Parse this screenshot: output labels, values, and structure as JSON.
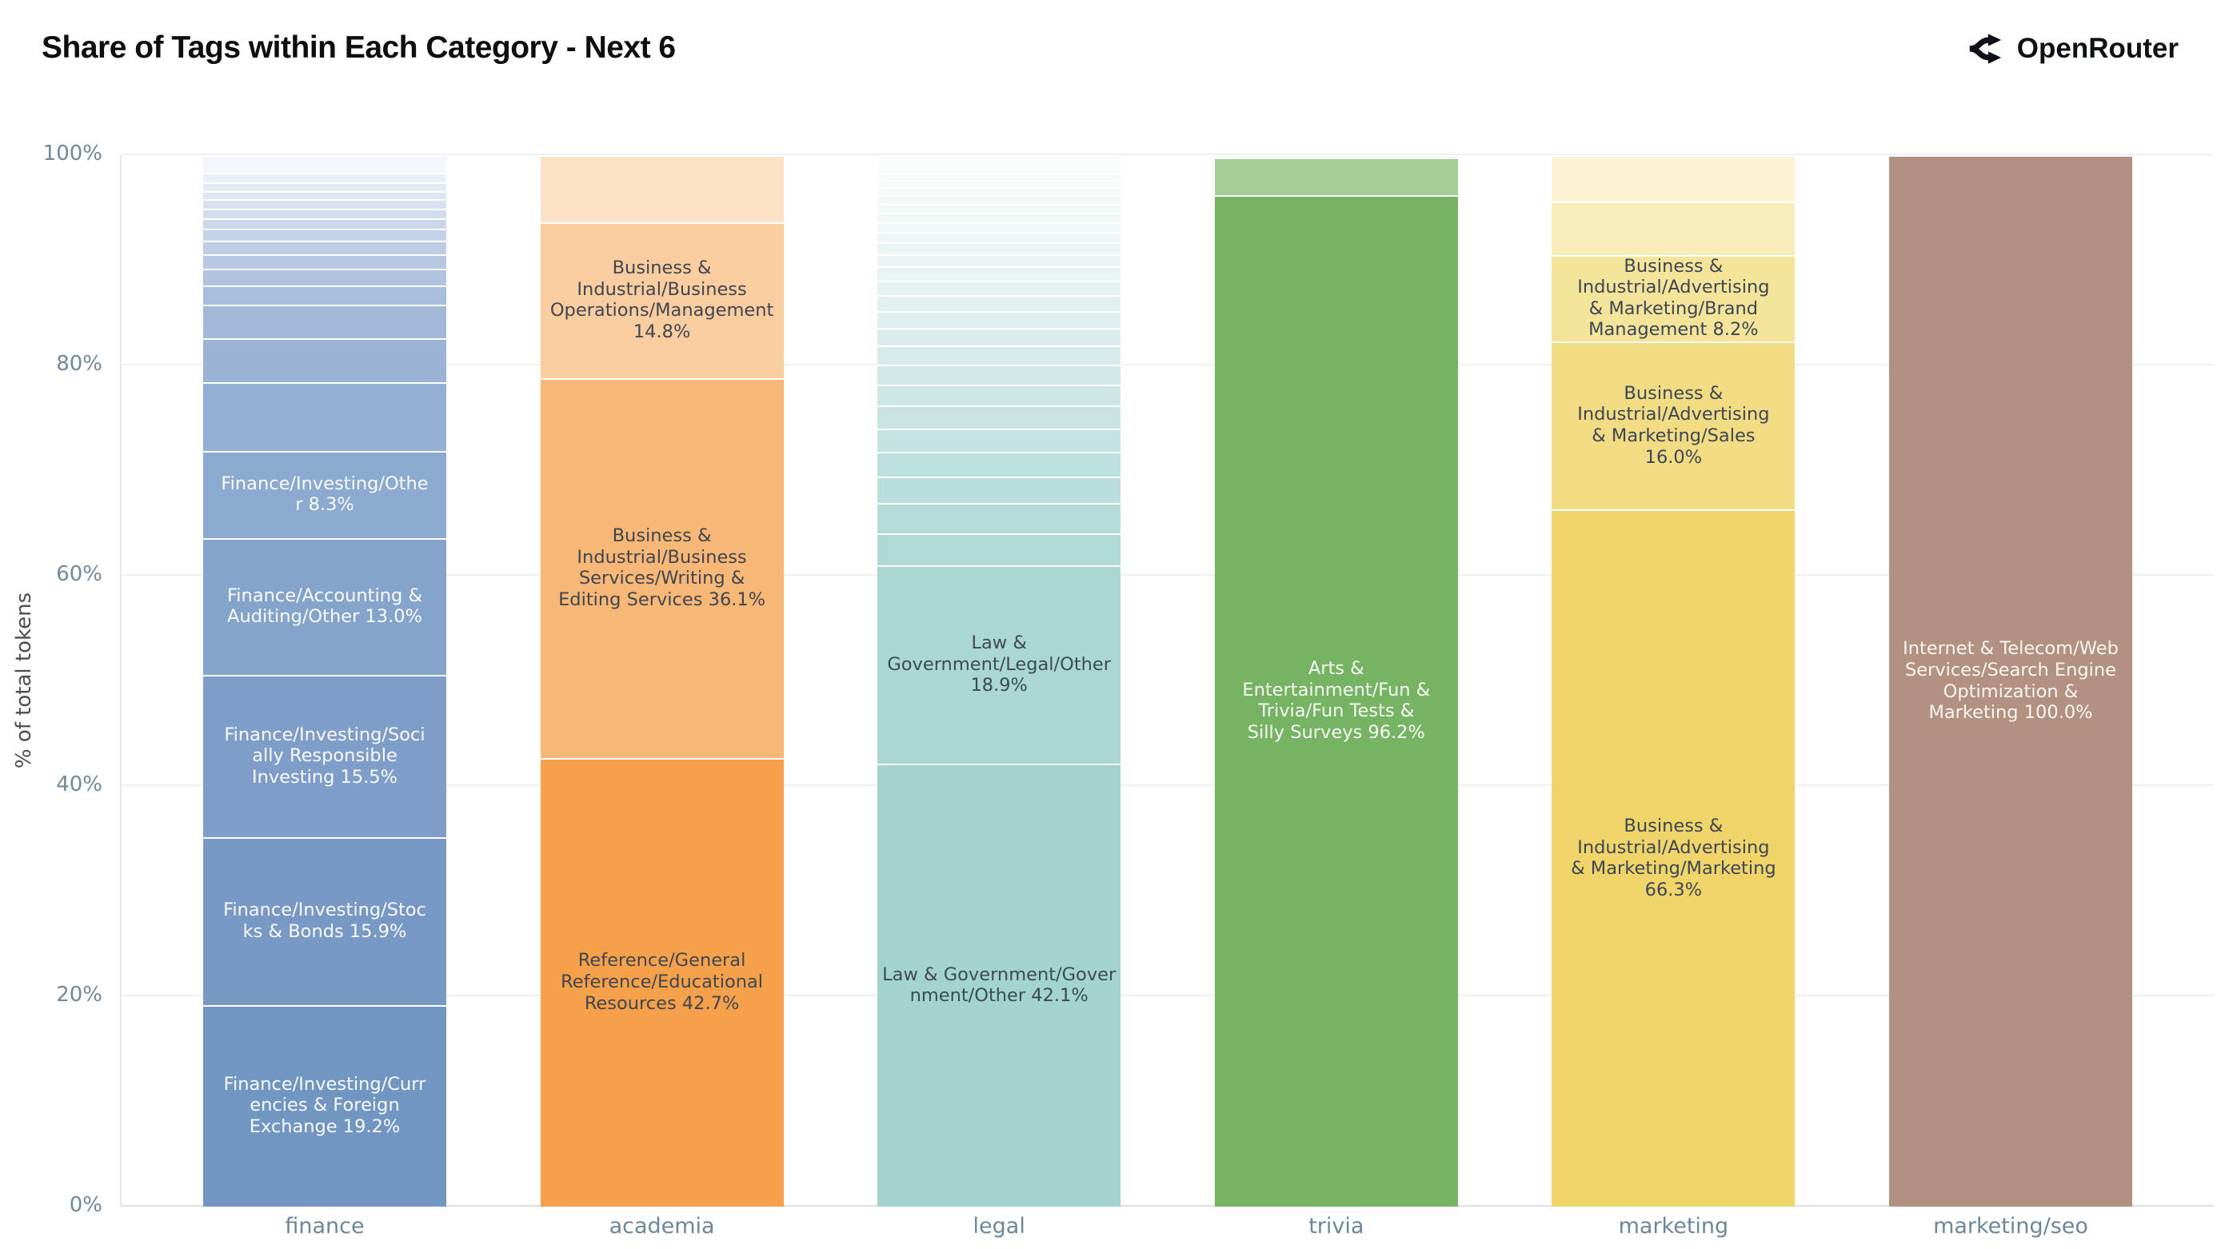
{
  "header": {
    "title": "Share of Tags within Each Category - Next 6",
    "brand": "OpenRouter"
  },
  "chart_data": {
    "type": "bar",
    "stacked": true,
    "title": "Share of Tags within Each Category - Next 6",
    "xlabel": "",
    "ylabel": "% of total tokens",
    "ylim": [
      0,
      100
    ],
    "grid": true,
    "yticks": [
      "0%",
      "20%",
      "40%",
      "60%",
      "80%",
      "100%"
    ],
    "categories": [
      "finance",
      "academia",
      "legal",
      "trivia",
      "marketing",
      "marketing/seo"
    ],
    "bars": [
      {
        "category": "finance",
        "label_color": "#fafbfd",
        "segments": [
          {
            "value": 19.2,
            "color": "#7296C2",
            "label": "Finance/Investing/Curr\nencies & Foreign\nExchange 19.2%"
          },
          {
            "value": 15.9,
            "color": "#7899C5",
            "label": "Finance/Investing/Stoc\nks & Bonds 15.9%"
          },
          {
            "value": 15.5,
            "color": "#7E9EC9",
            "label": "Finance/Investing/Soci\nally Responsible\nInvesting 15.5%"
          },
          {
            "value": 13.0,
            "color": "#85A4CC",
            "label": "Finance/Accounting &\nAuditing/Other 13.0%"
          },
          {
            "value": 8.3,
            "color": "#8CA9D0",
            "label": "Finance/Investing/Othe\nr 8.3%"
          },
          {
            "value": 6.5,
            "color": "#94AFD3",
            "label": ""
          },
          {
            "value": 4.2,
            "color": "#9BB4D6",
            "label": ""
          },
          {
            "value": 3.2,
            "color": "#A2B9D9",
            "label": ""
          },
          {
            "value": 1.8,
            "color": "#A9BEDC",
            "label": ""
          },
          {
            "value": 1.6,
            "color": "#B0C3DF",
            "label": ""
          },
          {
            "value": 1.4,
            "color": "#B7C8E2",
            "label": ""
          },
          {
            "value": 1.3,
            "color": "#BECDE5",
            "label": ""
          },
          {
            "value": 1.1,
            "color": "#C4D2E8",
            "label": ""
          },
          {
            "value": 1.0,
            "color": "#CBD7EB",
            "label": ""
          },
          {
            "value": 0.9,
            "color": "#D1DCEE",
            "label": ""
          },
          {
            "value": 0.9,
            "color": "#D8E1F0",
            "label": ""
          },
          {
            "value": 0.8,
            "color": "#DEE6F3",
            "label": ""
          },
          {
            "value": 0.8,
            "color": "#E4EBF5",
            "label": ""
          },
          {
            "value": 0.9,
            "color": "#EBF0F8",
            "label": ""
          },
          {
            "value": 1.7,
            "color": "#F3F7FB",
            "label": ""
          }
        ]
      },
      {
        "category": "academia",
        "label_color": "#41454f",
        "segments": [
          {
            "value": 42.7,
            "color": "#F5A14C",
            "label": "Reference/General\nReference/Educational\nResources 42.7%"
          },
          {
            "value": 36.1,
            "color": "#F7B877",
            "label": "Business &\nIndustrial/Business\nServices/Writing &\nEditing Services 36.1%"
          },
          {
            "value": 14.8,
            "color": "#FACDA0",
            "label": "Business &\nIndustrial/Business\nOperations/Management\n14.8%"
          },
          {
            "value": 6.4,
            "color": "#FCE3C8",
            "label": ""
          }
        ]
      },
      {
        "category": "legal",
        "label_color": "#3c4a52",
        "segments": [
          {
            "value": 42.1,
            "color": "#A3D3CD",
            "label": "Law & Government/Gover\nnment/Other 42.1%"
          },
          {
            "value": 18.9,
            "color": "#AAD7D2",
            "label": "Law &\nGovernment/Legal/Other\n18.9%"
          },
          {
            "value": 3.0,
            "color": "#B0DAD5",
            "label": ""
          },
          {
            "value": 2.9,
            "color": "#B5DCD8",
            "label": ""
          },
          {
            "value": 2.5,
            "color": "#BADFDB",
            "label": ""
          },
          {
            "value": 2.4,
            "color": "#BFE1DD",
            "label": ""
          },
          {
            "value": 2.2,
            "color": "#C4E3E0",
            "label": ""
          },
          {
            "value": 2.2,
            "color": "#C9E5E2",
            "label": ""
          },
          {
            "value": 2.0,
            "color": "#CDE7E5",
            "label": ""
          },
          {
            "value": 1.9,
            "color": "#D2E9E7",
            "label": ""
          },
          {
            "value": 1.8,
            "color": "#D6EBEA",
            "label": ""
          },
          {
            "value": 1.7,
            "color": "#DAEDEC",
            "label": ""
          },
          {
            "value": 1.6,
            "color": "#DEEFEE",
            "label": ""
          },
          {
            "value": 1.5,
            "color": "#E2F1F0",
            "label": ""
          },
          {
            "value": 1.4,
            "color": "#E5F2F1",
            "label": ""
          },
          {
            "value": 1.3,
            "color": "#E8F3F2",
            "label": ""
          },
          {
            "value": 1.2,
            "color": "#EBF4F3",
            "label": ""
          },
          {
            "value": 1.1,
            "color": "#EDF5F4",
            "label": ""
          },
          {
            "value": 1.0,
            "color": "#EFF6F5",
            "label": ""
          },
          {
            "value": 0.95,
            "color": "#F1F7F6",
            "label": ""
          },
          {
            "value": 0.9,
            "color": "#F2F8F7",
            "label": ""
          },
          {
            "value": 0.85,
            "color": "#F3F8F7",
            "label": ""
          },
          {
            "value": 0.8,
            "color": "#F4F9F8",
            "label": ""
          },
          {
            "value": 0.75,
            "color": "#F5F9F8",
            "label": ""
          },
          {
            "value": 0.7,
            "color": "#F6FAF9",
            "label": ""
          },
          {
            "value": 0.65,
            "color": "#F7FAF9",
            "label": ""
          },
          {
            "value": 0.6,
            "color": "#F8FBFA",
            "label": ""
          },
          {
            "value": 1.1,
            "color": "#FAFCFB",
            "label": ""
          }
        ]
      },
      {
        "category": "trivia",
        "label_color": "#f7faf6",
        "segments": [
          {
            "value": 96.2,
            "color": "#76B363",
            "label": "Arts &\nEntertainment/Fun &\nTrivia/Fun Tests &\nSilly Surveys 96.2%"
          },
          {
            "value": 3.6,
            "color": "#A6CD98",
            "label": ""
          },
          {
            "value": 0.2,
            "color": "#E9F3E6",
            "label": ""
          }
        ]
      },
      {
        "category": "marketing",
        "label_color": "#3e4554",
        "segments": [
          {
            "value": 66.3,
            "color": "#EED469",
            "label": "Business &\nIndustrial/Advertising\n& Marketing/Marketing\n66.3%"
          },
          {
            "value": 16.0,
            "color": "#F1DC84",
            "label": "Business &\nIndustrial/Advertising\n& Marketing/Sales\n16.0%"
          },
          {
            "value": 8.2,
            "color": "#F4E49A",
            "label": "Business &\nIndustrial/Advertising\n& Marketing/Brand\nManagement 8.2%"
          },
          {
            "value": 5.1,
            "color": "#F8ECB8",
            "label": ""
          },
          {
            "value": 4.4,
            "color": "#FBF3D3",
            "label": ""
          }
        ]
      },
      {
        "category": "marketing/seo",
        "label_color": "#f8f5f3",
        "segments": [
          {
            "value": 100.0,
            "color": "#B29180",
            "label": "Internet & Telecom/Web\nServices/Search Engine\nOptimization &\nMarketing 100.0%"
          }
        ]
      }
    ]
  }
}
